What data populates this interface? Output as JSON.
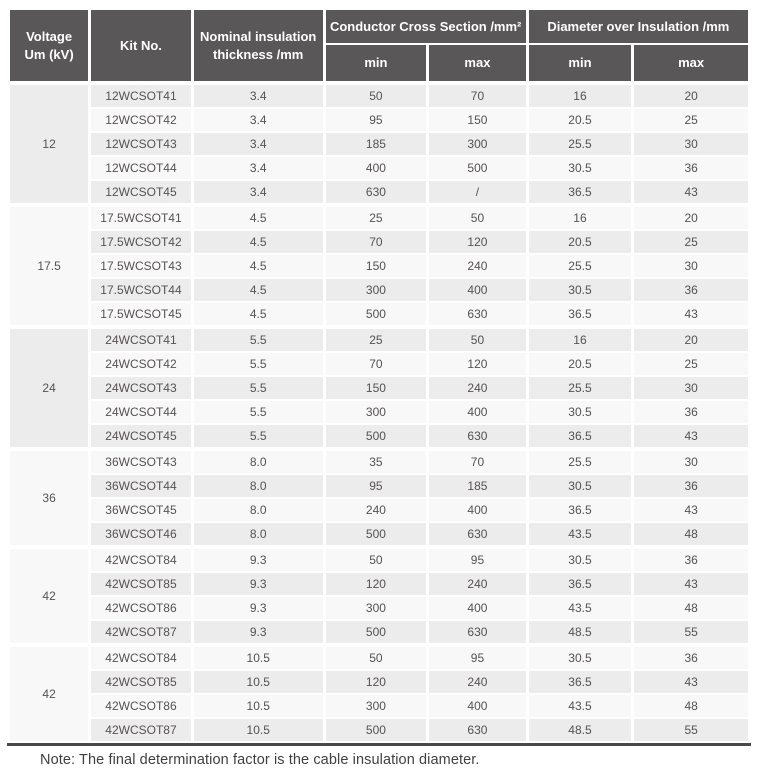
{
  "colors": {
    "header_bg": "#595757",
    "row_shade": "#ececec",
    "row_plain": "#f8f8f8",
    "cell_border": "#ffffff",
    "bottom_rule": "#4a4848",
    "body_text": "#565152",
    "header_text": "#ffffff"
  },
  "table": {
    "header": {
      "voltage_line1": "Voltage",
      "voltage_line2": "Um (kV)",
      "kit": "Kit No.",
      "nominal_line1": "Nominal insulation",
      "nominal_line2": "thickness /mm",
      "ccs": "Conductor Cross Section /mm²",
      "doi": "Diameter over Insulation /mm",
      "min": "min",
      "max": "max"
    },
    "groups": [
      {
        "voltage": "12",
        "rows": [
          [
            "12WCSOT41",
            "3.4",
            "50",
            "70",
            "16",
            "20"
          ],
          [
            "12WCSOT42",
            "3.4",
            "95",
            "150",
            "20.5",
            "25"
          ],
          [
            "12WCSOT43",
            "3.4",
            "185",
            "300",
            "25.5",
            "30"
          ],
          [
            "12WCSOT44",
            "3.4",
            "400",
            "500",
            "30.5",
            "36"
          ],
          [
            "12WCSOT45",
            "3.4",
            "630",
            "/",
            "36.5",
            "43"
          ]
        ]
      },
      {
        "voltage": "17.5",
        "rows": [
          [
            "17.5WCSOT41",
            "4.5",
            "25",
            "50",
            "16",
            "20"
          ],
          [
            "17.5WCSOT42",
            "4.5",
            "70",
            "120",
            "20.5",
            "25"
          ],
          [
            "17.5WCSOT43",
            "4.5",
            "150",
            "240",
            "25.5",
            "30"
          ],
          [
            "17.5WCSOT44",
            "4.5",
            "300",
            "400",
            "30.5",
            "36"
          ],
          [
            "17.5WCSOT45",
            "4.5",
            "500",
            "630",
            "36.5",
            "43"
          ]
        ]
      },
      {
        "voltage": "24",
        "rows": [
          [
            "24WCSOT41",
            "5.5",
            "25",
            "50",
            "16",
            "20"
          ],
          [
            "24WCSOT42",
            "5.5",
            "70",
            "120",
            "20.5",
            "25"
          ],
          [
            "24WCSOT43",
            "5.5",
            "150",
            "240",
            "25.5",
            "30"
          ],
          [
            "24WCSOT44",
            "5.5",
            "300",
            "400",
            "30.5",
            "36"
          ],
          [
            "24WCSOT45",
            "5.5",
            "500",
            "630",
            "36.5",
            "43"
          ]
        ]
      },
      {
        "voltage": "36",
        "rows": [
          [
            "36WCSOT43",
            "8.0",
            "35",
            "70",
            "25.5",
            "30"
          ],
          [
            "36WCSOT44",
            "8.0",
            "95",
            "185",
            "30.5",
            "36"
          ],
          [
            "36WCSOT45",
            "8.0",
            "240",
            "400",
            "36.5",
            "43"
          ],
          [
            "36WCSOT46",
            "8.0",
            "500",
            "630",
            "43.5",
            "48"
          ]
        ]
      },
      {
        "voltage": "42",
        "rows": [
          [
            "42WCSOT84",
            "9.3",
            "50",
            "95",
            "30.5",
            "36"
          ],
          [
            "42WCSOT85",
            "9.3",
            "120",
            "240",
            "36.5",
            "43"
          ],
          [
            "42WCSOT86",
            "9.3",
            "300",
            "400",
            "43.5",
            "48"
          ],
          [
            "42WCSOT87",
            "9.3",
            "500",
            "630",
            "48.5",
            "55"
          ]
        ]
      },
      {
        "voltage": "42",
        "rows": [
          [
            "42WCSOT84",
            "10.5",
            "50",
            "95",
            "30.5",
            "36"
          ],
          [
            "42WCSOT85",
            "10.5",
            "120",
            "240",
            "36.5",
            "43"
          ],
          [
            "42WCSOT86",
            "10.5",
            "300",
            "400",
            "43.5",
            "48"
          ],
          [
            "42WCSOT87",
            "10.5",
            "500",
            "630",
            "48.5",
            "55"
          ]
        ]
      }
    ]
  },
  "note": "Note: The final determination factor is the cable insulation diameter."
}
